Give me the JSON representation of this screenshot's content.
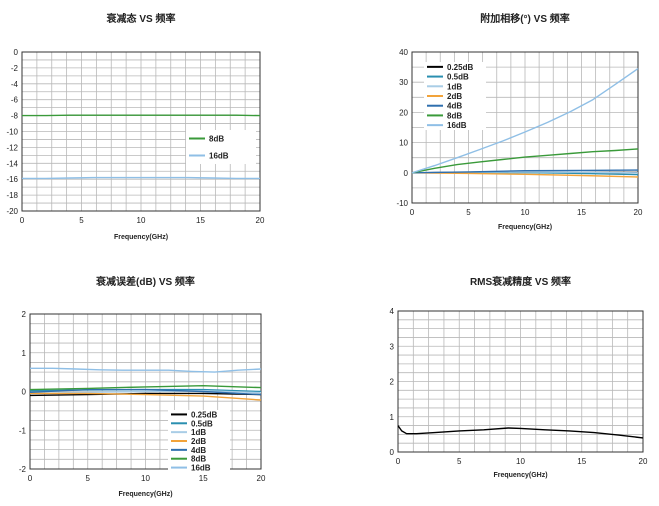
{
  "chart_data": [
    {
      "type": "line",
      "title": "衰减态 VS 频率",
      "xlabel": "Frequency(GHz)",
      "ylabel": "",
      "xlim": [
        0,
        20
      ],
      "ylim": [
        -20,
        0
      ],
      "xticks": [
        "0",
        "5",
        "10",
        "15",
        "20"
      ],
      "yticks": [
        "0",
        "-2",
        "-4",
        "-6",
        "-8",
        "-10",
        "-12",
        "-14",
        "-16",
        "-18",
        "-20"
      ],
      "grid": true,
      "legend_position": "center-right",
      "series": [
        {
          "name": "8dB",
          "color": "#3a9a3a",
          "x": [
            0,
            2,
            4,
            6,
            8,
            10,
            12,
            14,
            16,
            18,
            20
          ],
          "y": [
            -8.0,
            -8.0,
            -7.95,
            -7.95,
            -7.95,
            -7.95,
            -7.95,
            -7.95,
            -7.95,
            -7.95,
            -8.0
          ]
        },
        {
          "name": "16dB",
          "color": "#8fbfe6",
          "x": [
            0,
            2,
            4,
            6,
            8,
            10,
            12,
            14,
            16,
            18,
            20
          ],
          "y": [
            -15.9,
            -15.9,
            -15.85,
            -15.8,
            -15.8,
            -15.8,
            -15.8,
            -15.8,
            -15.85,
            -15.9,
            -15.9
          ]
        }
      ]
    },
    {
      "type": "line",
      "title": "附加相移(°) VS 频率",
      "xlabel": "Frequency(GHz)",
      "ylabel": "",
      "xlim": [
        0,
        20
      ],
      "ylim": [
        -10,
        40
      ],
      "xticks": [
        "0",
        "5",
        "10",
        "15",
        "20"
      ],
      "yticks": [
        "40",
        "30",
        "20",
        "10",
        "0",
        "-10"
      ],
      "grid": true,
      "legend_position": "top-left",
      "series": [
        {
          "name": "0.25dB",
          "color": "#000000",
          "x": [
            0,
            5,
            10,
            15,
            20
          ],
          "y": [
            0,
            0.2,
            0.3,
            0.2,
            0.1
          ]
        },
        {
          "name": "0.5dB",
          "color": "#2a8fb0",
          "x": [
            0,
            5,
            10,
            15,
            20
          ],
          "y": [
            0,
            0.1,
            0.1,
            -0.2,
            -0.6
          ]
        },
        {
          "name": "1dB",
          "color": "#a9cde6",
          "x": [
            0,
            5,
            10,
            15,
            20
          ],
          "y": [
            0,
            0.2,
            0.3,
            0.2,
            0.0
          ]
        },
        {
          "name": "2dB",
          "color": "#f2a33a",
          "x": [
            0,
            5,
            10,
            15,
            20
          ],
          "y": [
            0,
            -0.2,
            -0.5,
            -0.9,
            -1.4
          ]
        },
        {
          "name": "4dB",
          "color": "#2f6fae",
          "x": [
            0,
            5,
            10,
            15,
            20
          ],
          "y": [
            0,
            0.3,
            0.7,
            0.8,
            0.9
          ]
        },
        {
          "name": "8dB",
          "color": "#3a9a3a",
          "x": [
            0,
            2,
            4,
            6,
            8,
            10,
            12,
            14,
            16,
            18,
            20
          ],
          "y": [
            0,
            1.5,
            2.7,
            3.6,
            4.4,
            5.2,
            5.8,
            6.4,
            7.0,
            7.4,
            7.9
          ]
        },
        {
          "name": "16dB",
          "color": "#8fbfe6",
          "x": [
            0,
            2,
            4,
            6,
            8,
            10,
            12,
            14,
            16,
            18,
            20
          ],
          "y": [
            0,
            2.4,
            5.0,
            7.7,
            10.5,
            13.5,
            16.7,
            20.2,
            24.2,
            29.3,
            34.5
          ]
        }
      ]
    },
    {
      "type": "line",
      "title": "衰减误差(dB)  VS 频率",
      "xlabel": "Frequency(GHz)",
      "ylabel": "",
      "xlim": [
        0,
        20
      ],
      "ylim": [
        -2,
        2
      ],
      "xticks": [
        "0",
        "5",
        "10",
        "15",
        "20"
      ],
      "yticks": [
        "2",
        "1",
        "0",
        "-1",
        "-2"
      ],
      "grid": true,
      "legend_position": "bottom-right",
      "series": [
        {
          "name": "0.25dB",
          "color": "#000000",
          "x": [
            0,
            5,
            10,
            15,
            20
          ],
          "y": [
            -0.1,
            -0.08,
            -0.05,
            -0.05,
            -0.08
          ]
        },
        {
          "name": "0.5dB",
          "color": "#2a8fb0",
          "x": [
            0,
            5,
            10,
            15,
            20
          ],
          "y": [
            0.02,
            0.04,
            0.05,
            0.05,
            0.0
          ]
        },
        {
          "name": "1dB",
          "color": "#a9cde6",
          "x": [
            0,
            5,
            10,
            15,
            20
          ],
          "y": [
            -0.05,
            -0.02,
            0.0,
            0.02,
            -0.03
          ]
        },
        {
          "name": "2dB",
          "color": "#f2a33a",
          "x": [
            0,
            5,
            10,
            15,
            20
          ],
          "y": [
            -0.05,
            -0.05,
            -0.08,
            -0.12,
            -0.22
          ]
        },
        {
          "name": "4dB",
          "color": "#2f6fae",
          "x": [
            0,
            5,
            10,
            15,
            20
          ],
          "y": [
            -0.02,
            0.05,
            0.05,
            0.0,
            -0.08
          ]
        },
        {
          "name": "8dB",
          "color": "#3a9a3a",
          "x": [
            0,
            5,
            10,
            15,
            20
          ],
          "y": [
            0.05,
            0.08,
            0.12,
            0.15,
            0.1
          ]
        },
        {
          "name": "16dB",
          "color": "#8fbfe6",
          "x": [
            0,
            2,
            4,
            6,
            8,
            10,
            12,
            14,
            16,
            18,
            20
          ],
          "y": [
            0.6,
            0.6,
            0.58,
            0.56,
            0.55,
            0.55,
            0.55,
            0.52,
            0.5,
            0.55,
            0.58
          ]
        }
      ]
    },
    {
      "type": "line",
      "title": "RMS衰减精度 VS 频率",
      "xlabel": "Frequency(GHz)",
      "ylabel": "",
      "xlim": [
        0,
        20
      ],
      "ylim": [
        0,
        4
      ],
      "xticks": [
        "0",
        "5",
        "10",
        "15",
        "20"
      ],
      "yticks": [
        "4",
        "3",
        "2",
        "1",
        "0"
      ],
      "grid": true,
      "series": [
        {
          "name": "",
          "color": "#000000",
          "x": [
            0,
            0.3,
            0.7,
            1.5,
            3,
            5,
            7,
            9,
            10,
            12,
            14,
            16,
            18,
            20
          ],
          "y": [
            0.75,
            0.6,
            0.52,
            0.52,
            0.55,
            0.6,
            0.63,
            0.68,
            0.67,
            0.63,
            0.6,
            0.55,
            0.48,
            0.4
          ]
        }
      ]
    }
  ]
}
